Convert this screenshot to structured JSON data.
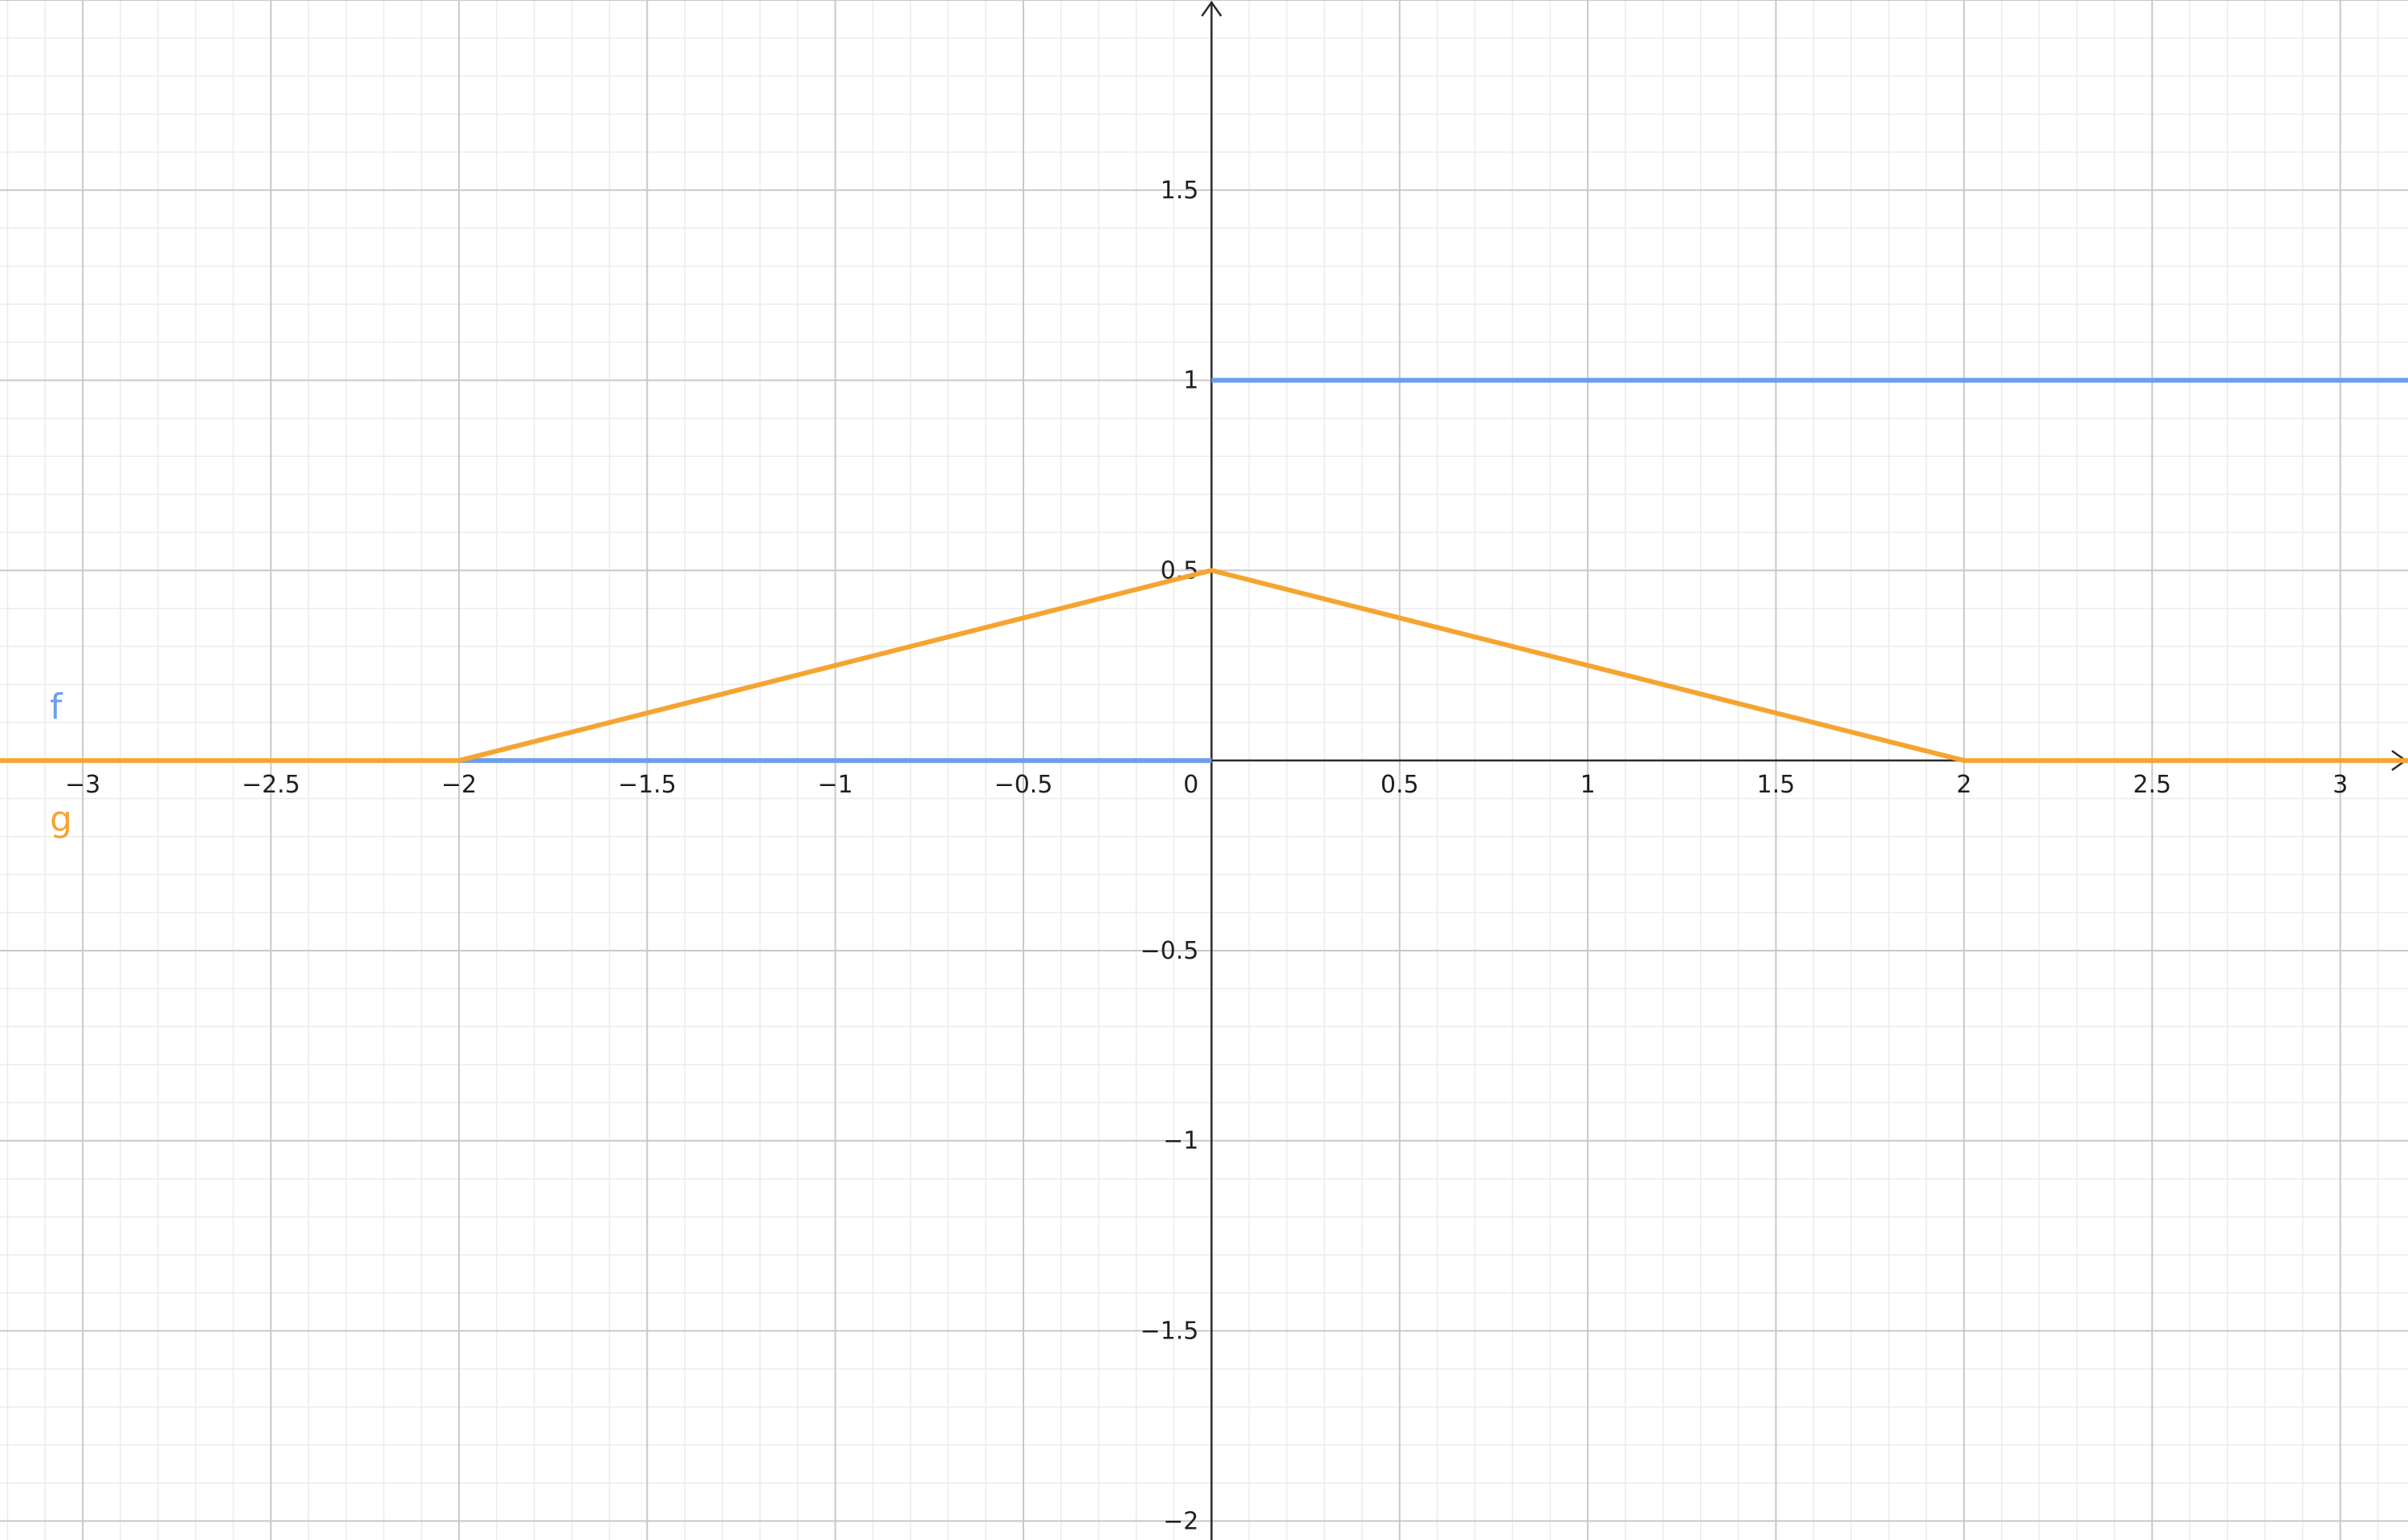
{
  "chart_data": {
    "type": "line",
    "title": "",
    "xlabel": "",
    "ylabel": "",
    "xlim": [
      -3.22,
      3.18
    ],
    "ylim": [
      -2.05,
      2.0
    ],
    "grid": true,
    "minor_grid": true,
    "x_ticks": [
      {
        "value": -3,
        "label": "−3"
      },
      {
        "value": -2.5,
        "label": "−2.5"
      },
      {
        "value": -2,
        "label": "−2"
      },
      {
        "value": -1.5,
        "label": "−1.5"
      },
      {
        "value": -1,
        "label": "−1"
      },
      {
        "value": -0.5,
        "label": "−0.5"
      },
      {
        "value": 0.5,
        "label": "0.5"
      },
      {
        "value": 1,
        "label": "1"
      },
      {
        "value": 1.5,
        "label": "1.5"
      },
      {
        "value": 2,
        "label": "2"
      },
      {
        "value": 2.5,
        "label": "2.5"
      },
      {
        "value": 3,
        "label": "3"
      }
    ],
    "y_ticks": [
      {
        "value": -2,
        "label": "−2"
      },
      {
        "value": -1.5,
        "label": "−1.5"
      },
      {
        "value": -1,
        "label": "−1"
      },
      {
        "value": -0.5,
        "label": "−0.5"
      },
      {
        "value": 0.5,
        "label": "0.5"
      },
      {
        "value": 1,
        "label": "1"
      },
      {
        "value": 1.5,
        "label": "1.5"
      }
    ],
    "origin_label": "0",
    "series": [
      {
        "name": "f",
        "color": "#6d9eeb",
        "segments": [
          {
            "points": [
              [
                -2,
                0
              ],
              [
                0,
                0
              ]
            ]
          },
          {
            "points": [
              [
                0,
                1
              ],
              [
                3.18,
                1
              ]
            ]
          }
        ]
      },
      {
        "name": "g",
        "color": "#f6a431",
        "segments": [
          {
            "points": [
              [
                -3.22,
                0
              ],
              [
                -2,
                0
              ],
              [
                0,
                0.5
              ],
              [
                2,
                0
              ],
              [
                3.18,
                0
              ]
            ]
          }
        ]
      }
    ]
  }
}
